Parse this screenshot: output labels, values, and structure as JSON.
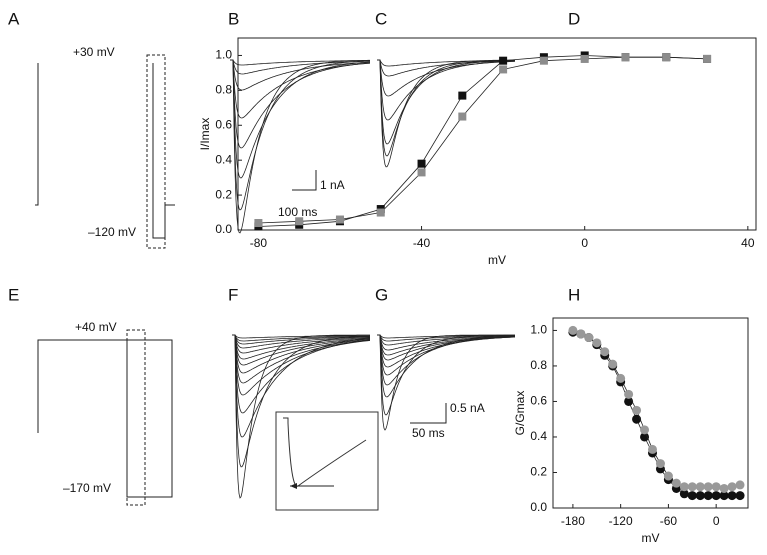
{
  "panel_labels": [
    "A",
    "B",
    "C",
    "D",
    "E",
    "F",
    "G",
    "H"
  ],
  "annotations": {
    "a_top": "+30 mV",
    "a_bottom": "–120 mV",
    "b_scale_y": "1 nA",
    "b_scale_x": "100 ms",
    "e_top": "+40 mV",
    "e_bottom": "–170 mV",
    "g_scale_y": "0.5 nA",
    "g_scale_x": "50 ms"
  },
  "chart_data": [
    {
      "type": "scatter",
      "ylabel": "I/Imax",
      "xlabel": "mV",
      "xlim": [
        -85,
        42
      ],
      "ylim": [
        0,
        1.1
      ],
      "xticks": [
        -80,
        -40,
        0,
        40
      ],
      "yticks": [
        {
          "value": 0,
          "label": "0.0"
        },
        0.2,
        0.4,
        0.6,
        0.8,
        {
          "value": 1,
          "label": "1.0"
        }
      ],
      "series": [
        {
          "color": "#111111",
          "marker": "square",
          "x": [
            -80,
            -70,
            -60,
            -50,
            -40,
            -30,
            -20,
            -10,
            0,
            10,
            20,
            30
          ],
          "values": [
            0.02,
            0.03,
            0.05,
            0.12,
            0.38,
            0.77,
            0.97,
            0.99,
            1.0,
            0.99,
            0.99,
            0.98
          ]
        },
        {
          "color": "#8c8c8c",
          "marker": "square",
          "x": [
            -80,
            -70,
            -60,
            -50,
            -40,
            -30,
            -20,
            -10,
            0,
            10,
            20,
            30
          ],
          "values": [
            0.04,
            0.05,
            0.06,
            0.1,
            0.33,
            0.65,
            0.92,
            0.97,
            0.98,
            0.99,
            0.99,
            0.98
          ]
        }
      ]
    },
    {
      "type": "scatter",
      "ylabel": "G/Gmax",
      "xlabel": "mV",
      "xlim": [
        -205,
        40
      ],
      "ylim": [
        0,
        1.07
      ],
      "xticks": [
        -180,
        -120,
        -60,
        0
      ],
      "yticks": [
        {
          "value": 0,
          "label": "0.0"
        },
        0.2,
        0.4,
        0.6,
        0.8,
        {
          "value": 1,
          "label": "1.0"
        }
      ],
      "series": [
        {
          "color": "#111111",
          "marker": "circle",
          "x": [
            -180,
            -170,
            -160,
            -150,
            -140,
            -130,
            -120,
            -110,
            -100,
            -90,
            -80,
            -70,
            -60,
            -50,
            -40,
            -30,
            -20,
            -10,
            0,
            10,
            20,
            30
          ],
          "values": [
            0.99,
            0.98,
            0.96,
            0.92,
            0.86,
            0.8,
            0.71,
            0.6,
            0.5,
            0.4,
            0.31,
            0.22,
            0.16,
            0.11,
            0.08,
            0.07,
            0.07,
            0.07,
            0.07,
            0.07,
            0.07,
            0.07
          ]
        },
        {
          "color": "#999999",
          "marker": "circle",
          "x": [
            -180,
            -170,
            -160,
            -150,
            -140,
            -130,
            -120,
            -110,
            -100,
            -90,
            -80,
            -70,
            -60,
            -50,
            -40,
            -30,
            -20,
            -10,
            0,
            10,
            20,
            30
          ],
          "values": [
            1.0,
            0.98,
            0.96,
            0.93,
            0.88,
            0.81,
            0.73,
            0.64,
            0.55,
            0.44,
            0.33,
            0.25,
            0.18,
            0.14,
            0.12,
            0.12,
            0.12,
            0.12,
            0.12,
            0.11,
            0.12,
            0.13
          ]
        }
      ]
    }
  ]
}
